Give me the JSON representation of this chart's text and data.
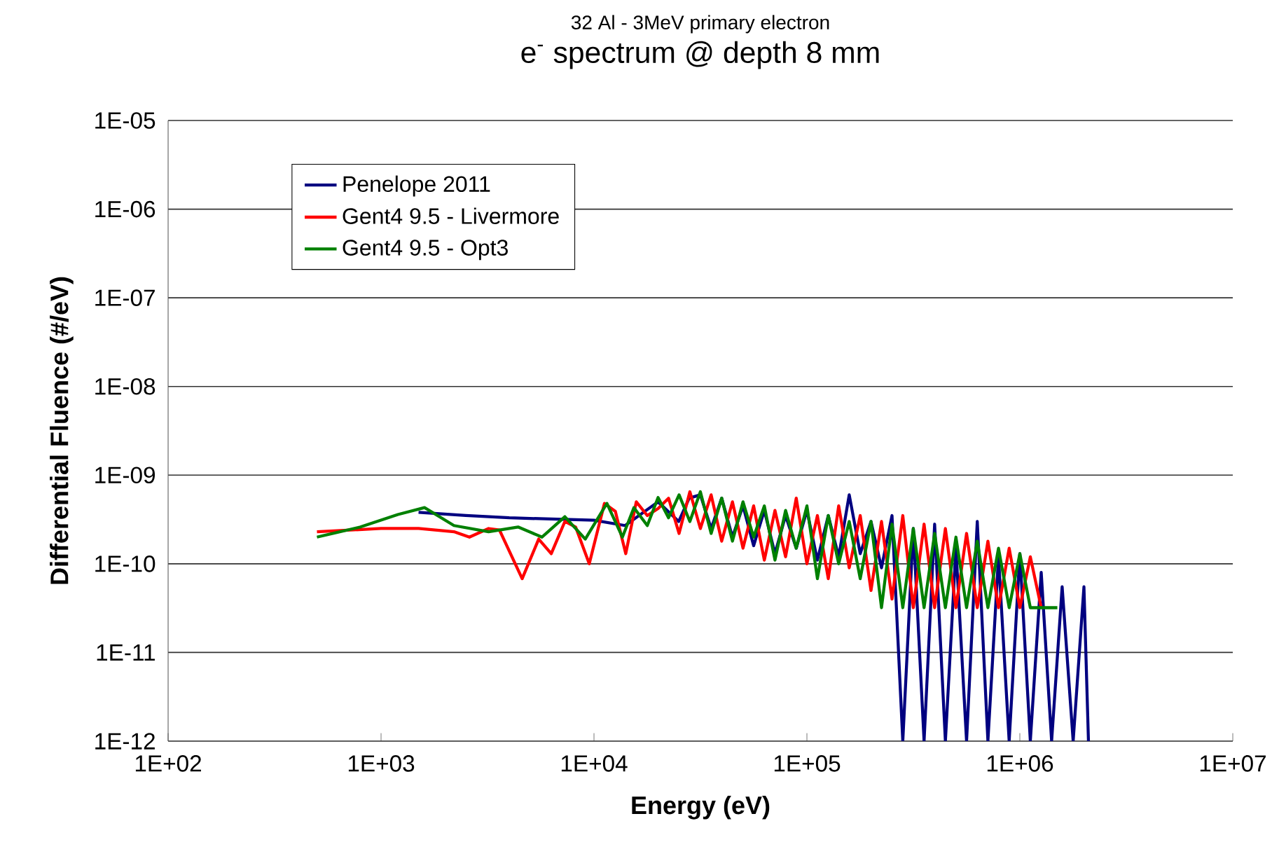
{
  "chart_data": {
    "type": "line",
    "title": "e$^{-}$ spectrum @ depth 8 mm",
    "subtitle": "32 Al - 3MeV primary electron",
    "xlabel": "Energy (eV)",
    "ylabel": "Differential  Fluence (#/eV)",
    "log": "xy",
    "grid": "y",
    "legend": "top left",
    "marker": "none",
    "line_style": "solid",
    "xlim": [
      100,
      10000000
    ],
    "ylim": [
      1e-12,
      1e-05
    ],
    "xticks": [
      {
        "value": 100,
        "label": "1E+02"
      },
      {
        "value": 1000,
        "label": "1E+03"
      },
      {
        "value": 10000,
        "label": "1E+04"
      },
      {
        "value": 100000,
        "label": "1E+05"
      },
      {
        "value": 1000000,
        "label": "1E+06"
      },
      {
        "value": 10000000,
        "label": "1E+07"
      }
    ],
    "yticks": [
      {
        "value": 1e-12,
        "label": "1E-12"
      },
      {
        "value": 1e-11,
        "label": "1E-11"
      },
      {
        "value": 1e-10,
        "label": "1E-10"
      },
      {
        "value": 1e-09,
        "label": "1E-09"
      },
      {
        "value": 1e-08,
        "label": "1E-08"
      },
      {
        "value": 1e-07,
        "label": "1E-07"
      },
      {
        "value": 1e-06,
        "label": "1E-06"
      },
      {
        "value": 1e-05,
        "label": "1E-05"
      }
    ],
    "series": [
      {
        "name": "Penelope 2011",
        "color": "#000080",
        "x": [
          1500,
          2500,
          4000,
          6300,
          10000,
          14000,
          20000,
          25000,
          28000,
          31600,
          35500,
          39800,
          44700,
          50100,
          56200,
          63100,
          70800,
          79400,
          89100,
          100000,
          112000,
          126000,
          141000,
          158000,
          178000,
          200000,
          224000,
          251000,
          282000,
          316000,
          355000,
          398000,
          447000,
          501000,
          562000,
          631000,
          708000,
          794000,
          891000,
          1000000,
          1120000,
          1260000,
          1410000,
          1580000,
          1780000,
          2000000,
          2100000
        ],
        "values": [
          3.8e-10,
          3.5e-10,
          3.3e-10,
          3.2e-10,
          3.1e-10,
          2.7e-10,
          5e-10,
          3e-10,
          5.5e-10,
          6e-10,
          2.5e-10,
          5.5e-10,
          2e-10,
          4.5e-10,
          1.6e-10,
          4e-10,
          1.3e-10,
          3.5e-10,
          1.5e-10,
          4e-10,
          1.1e-10,
          3.5e-10,
          1.2e-10,
          6e-10,
          1.3e-10,
          3e-10,
          9e-11,
          3.5e-10,
          1e-12,
          2.5e-10,
          1e-12,
          2.8e-10,
          1e-12,
          1.5e-10,
          1e-12,
          3e-10,
          1e-12,
          1.2e-10,
          1e-12,
          1.3e-10,
          1e-12,
          8e-11,
          1e-12,
          5.5e-11,
          1e-12,
          5.5e-11,
          1e-12
        ]
      },
      {
        "name": "Gent4 9.5  - Livermore",
        "color": "#ff0000",
        "x": [
          500,
          1000,
          1500,
          2200,
          2600,
          3200,
          3600,
          4600,
          5500,
          6300,
          7300,
          8200,
          9500,
          11200,
          12600,
          14100,
          15800,
          17800,
          20000,
          22400,
          25100,
          28200,
          31600,
          35500,
          39800,
          44700,
          50100,
          56200,
          63100,
          70800,
          79400,
          89100,
          100000,
          112000,
          126000,
          141000,
          158000,
          178000,
          200000,
          224000,
          251000,
          282000,
          316000,
          355000,
          398000,
          447000,
          501000,
          562000,
          631000,
          708000,
          794000,
          891000,
          1000000,
          1120000,
          1260000
        ],
        "values": [
          2.3e-10,
          2.5e-10,
          2.5e-10,
          2.3e-10,
          2e-10,
          2.5e-10,
          2.4e-10,
          6.8e-11,
          1.9e-10,
          1.3e-10,
          3e-10,
          2.6e-10,
          1e-10,
          4.8e-10,
          3.9e-10,
          1.3e-10,
          5e-10,
          3.5e-10,
          4.2e-10,
          5.5e-10,
          2.2e-10,
          6.5e-10,
          2.5e-10,
          6e-10,
          1.8e-10,
          5e-10,
          1.5e-10,
          4.5e-10,
          1.1e-10,
          4e-10,
          1.2e-10,
          5.5e-10,
          1e-10,
          3.5e-10,
          6.8e-11,
          4.5e-10,
          9e-11,
          3.5e-10,
          5e-11,
          3e-10,
          4e-11,
          3.5e-10,
          3.2e-11,
          2.8e-10,
          3.2e-11,
          2.5e-10,
          3.2e-11,
          2.2e-10,
          3.2e-11,
          1.8e-10,
          3.2e-11,
          1.5e-10,
          3.2e-11,
          1.2e-10,
          3.2e-11
        ]
      },
      {
        "name": "Gent4 9.5  - Opt3",
        "color": "#008000",
        "x": [
          500,
          800,
          1200,
          1600,
          2200,
          3200,
          4400,
          5700,
          7300,
          9100,
          11500,
          13600,
          15400,
          17800,
          20000,
          22400,
          25100,
          28200,
          31600,
          35500,
          39800,
          44700,
          50100,
          56200,
          63100,
          70800,
          79400,
          89100,
          100000,
          112000,
          126000,
          141000,
          158000,
          178000,
          200000,
          224000,
          251000,
          282000,
          316000,
          355000,
          398000,
          447000,
          501000,
          562000,
          631000,
          708000,
          794000,
          891000,
          1000000,
          1120000,
          1500000
        ],
        "values": [
          2e-10,
          2.6e-10,
          3.6e-10,
          4.3e-10,
          2.7e-10,
          2.3e-10,
          2.6e-10,
          2e-10,
          3.4e-10,
          1.9e-10,
          4.8e-10,
          2e-10,
          4.3e-10,
          2.7e-10,
          5.6e-10,
          3.3e-10,
          6e-10,
          3e-10,
          6.5e-10,
          2.2e-10,
          5.5e-10,
          1.8e-10,
          5e-10,
          2e-10,
          4.5e-10,
          1.1e-10,
          4e-10,
          1.5e-10,
          4.5e-10,
          6.8e-11,
          3.5e-10,
          1e-10,
          3e-10,
          6.8e-11,
          3e-10,
          3.2e-11,
          2.8e-10,
          3.2e-11,
          2.5e-10,
          3.2e-11,
          2.2e-10,
          3.2e-11,
          2e-10,
          3.2e-11,
          1.8e-10,
          3.2e-11,
          1.5e-10,
          3.2e-11,
          1.3e-10,
          3.2e-11,
          3.2e-11
        ]
      }
    ]
  }
}
